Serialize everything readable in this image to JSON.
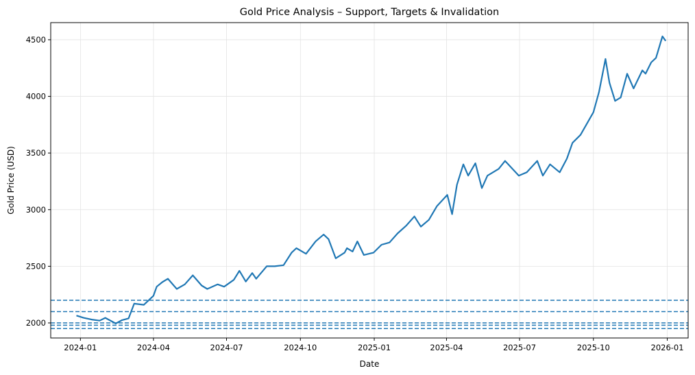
{
  "chart_data": {
    "type": "line",
    "title": "Gold Price Analysis – Support, Targets & Invalidation",
    "xlabel": "Date",
    "ylabel": "Gold Price (USD)",
    "xlim": [
      "2023-11-25",
      "2026-01-27"
    ],
    "ylim": [
      1867,
      4651
    ],
    "grid": true,
    "x_ticks": [
      "2024-01",
      "2024-04",
      "2024-07",
      "2024-10",
      "2025-01",
      "2025-04",
      "2025-07",
      "2025-10",
      "2026-01"
    ],
    "y_ticks": [
      2000,
      2500,
      3000,
      3500,
      4000,
      4500
    ],
    "line_color": "#1f77b4",
    "horizontal_lines": [
      {
        "value": 2200,
        "style": "dashed",
        "color": "#1f77b4"
      },
      {
        "value": 2100,
        "style": "dashed",
        "color": "#1f77b4"
      },
      {
        "value": 2000,
        "style": "dashed",
        "color": "#1f77b4"
      },
      {
        "value": 1980,
        "style": "dashed",
        "color": "#1f77b4"
      },
      {
        "value": 1950,
        "style": "dashed",
        "color": "#1f77b4"
      }
    ],
    "series": [
      {
        "points": [
          [
            "2023-12-27",
            2065
          ],
          [
            "2024-01-05",
            2045
          ],
          [
            "2024-01-15",
            2030
          ],
          [
            "2024-01-25",
            2020
          ],
          [
            "2024-02-01",
            2045
          ],
          [
            "2024-02-14",
            1995
          ],
          [
            "2024-02-22",
            2025
          ],
          [
            "2024-03-01",
            2040
          ],
          [
            "2024-03-08",
            2170
          ],
          [
            "2024-03-20",
            2160
          ],
          [
            "2024-04-01",
            2240
          ],
          [
            "2024-04-05",
            2320
          ],
          [
            "2024-04-12",
            2360
          ],
          [
            "2024-04-19",
            2390
          ],
          [
            "2024-04-30",
            2300
          ],
          [
            "2024-05-10",
            2340
          ],
          [
            "2024-05-20",
            2420
          ],
          [
            "2024-05-31",
            2330
          ],
          [
            "2024-06-07",
            2300
          ],
          [
            "2024-06-20",
            2340
          ],
          [
            "2024-06-28",
            2320
          ],
          [
            "2024-07-10",
            2380
          ],
          [
            "2024-07-17",
            2460
          ],
          [
            "2024-07-25",
            2365
          ],
          [
            "2024-08-02",
            2440
          ],
          [
            "2024-08-07",
            2390
          ],
          [
            "2024-08-20",
            2500
          ],
          [
            "2024-08-30",
            2500
          ],
          [
            "2024-09-10",
            2510
          ],
          [
            "2024-09-20",
            2620
          ],
          [
            "2024-09-26",
            2660
          ],
          [
            "2024-10-08",
            2610
          ],
          [
            "2024-10-20",
            2720
          ],
          [
            "2024-10-30",
            2780
          ],
          [
            "2024-11-05",
            2740
          ],
          [
            "2024-11-14",
            2570
          ],
          [
            "2024-11-25",
            2620
          ],
          [
            "2024-11-28",
            2660
          ],
          [
            "2024-12-05",
            2630
          ],
          [
            "2024-12-11",
            2720
          ],
          [
            "2024-12-19",
            2600
          ],
          [
            "2024-12-31",
            2620
          ],
          [
            "2025-01-10",
            2690
          ],
          [
            "2025-01-20",
            2710
          ],
          [
            "2025-01-30",
            2790
          ],
          [
            "2025-02-10",
            2860
          ],
          [
            "2025-02-20",
            2940
          ],
          [
            "2025-02-28",
            2850
          ],
          [
            "2025-03-10",
            2910
          ],
          [
            "2025-03-20",
            3030
          ],
          [
            "2025-04-02",
            3130
          ],
          [
            "2025-04-08",
            2960
          ],
          [
            "2025-04-14",
            3220
          ],
          [
            "2025-04-22",
            3400
          ],
          [
            "2025-04-28",
            3300
          ],
          [
            "2025-05-07",
            3410
          ],
          [
            "2025-05-15",
            3190
          ],
          [
            "2025-05-22",
            3300
          ],
          [
            "2025-06-05",
            3360
          ],
          [
            "2025-06-13",
            3430
          ],
          [
            "2025-06-30",
            3300
          ],
          [
            "2025-07-10",
            3330
          ],
          [
            "2025-07-23",
            3430
          ],
          [
            "2025-07-30",
            3300
          ],
          [
            "2025-08-08",
            3400
          ],
          [
            "2025-08-20",
            3330
          ],
          [
            "2025-08-29",
            3450
          ],
          [
            "2025-09-05",
            3590
          ],
          [
            "2025-09-15",
            3660
          ],
          [
            "2025-09-23",
            3760
          ],
          [
            "2025-10-01",
            3860
          ],
          [
            "2025-10-08",
            4040
          ],
          [
            "2025-10-16",
            4330
          ],
          [
            "2025-10-21",
            4120
          ],
          [
            "2025-10-28",
            3960
          ],
          [
            "2025-11-04",
            3990
          ],
          [
            "2025-11-12",
            4200
          ],
          [
            "2025-11-20",
            4070
          ],
          [
            "2025-12-01",
            4230
          ],
          [
            "2025-12-05",
            4200
          ],
          [
            "2025-12-12",
            4300
          ],
          [
            "2025-12-18",
            4340
          ],
          [
            "2025-12-26",
            4530
          ],
          [
            "2025-12-30",
            4490
          ]
        ]
      }
    ]
  }
}
